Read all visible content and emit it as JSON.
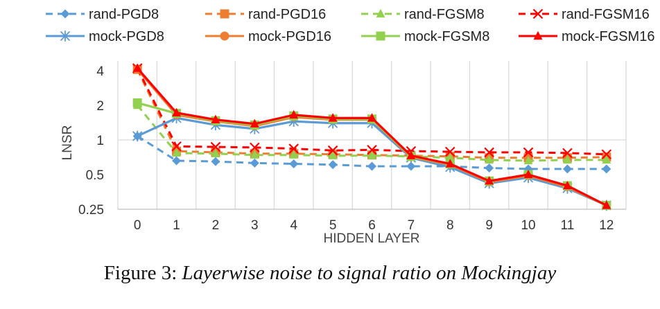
{
  "caption": {
    "prefix": "Figure 3:",
    "text": "Layerwise noise to signal ratio on Mockingjay"
  },
  "chart_data": {
    "type": "line",
    "xlabel": "HIDDEN LAYER",
    "ylabel": "LNSR",
    "y_scale": "log2",
    "ylim": [
      0.25,
      4
    ],
    "y_ticks": [
      0.25,
      0.5,
      1,
      2,
      4
    ],
    "y_tick_labels": [
      "0.25",
      "0.5",
      "1",
      "2",
      "4"
    ],
    "x": [
      0,
      1,
      2,
      3,
      4,
      5,
      6,
      7,
      8,
      9,
      10,
      11,
      12
    ],
    "grid": "vertical",
    "legend_position": "top",
    "series": [
      {
        "name": "rand-PGD8",
        "color": "#5b9bd5",
        "dash": "dashed",
        "marker": "diamond",
        "values": [
          1.08,
          0.66,
          0.65,
          0.63,
          0.62,
          0.61,
          0.59,
          0.59,
          0.59,
          0.57,
          0.56,
          0.56,
          0.56
        ]
      },
      {
        "name": "rand-PGD16",
        "color": "#ed7d31",
        "dash": "dashed",
        "marker": "square",
        "values": [
          4.1,
          0.8,
          0.78,
          0.76,
          0.76,
          0.75,
          0.74,
          0.73,
          0.72,
          0.7,
          0.7,
          0.7,
          0.71
        ]
      },
      {
        "name": "rand-FGSM8",
        "color": "#92d050",
        "dash": "dashed",
        "marker": "triangle",
        "values": [
          2.0,
          0.77,
          0.76,
          0.74,
          0.74,
          0.73,
          0.73,
          0.72,
          0.7,
          0.67,
          0.66,
          0.67,
          0.67
        ]
      },
      {
        "name": "rand-FGSM16",
        "color": "#ff0000",
        "dash": "dashed",
        "marker": "x",
        "values": [
          4.2,
          0.88,
          0.87,
          0.86,
          0.84,
          0.81,
          0.82,
          0.8,
          0.79,
          0.78,
          0.78,
          0.77,
          0.75
        ]
      },
      {
        "name": "mock-PGD8",
        "color": "#5b9bd5",
        "dash": "solid",
        "marker": "asterisk",
        "values": [
          1.08,
          1.55,
          1.35,
          1.25,
          1.45,
          1.4,
          1.4,
          0.7,
          0.58,
          0.42,
          0.47,
          0.38,
          0.27
        ]
      },
      {
        "name": "mock-PGD16",
        "color": "#ed7d31",
        "dash": "solid",
        "marker": "circle",
        "values": [
          4.1,
          1.65,
          1.45,
          1.32,
          1.58,
          1.5,
          1.5,
          0.71,
          0.61,
          0.43,
          0.49,
          0.39,
          0.27
        ]
      },
      {
        "name": "mock-FGSM8",
        "color": "#92d050",
        "dash": "solid",
        "marker": "square",
        "values": [
          2.1,
          1.7,
          1.47,
          1.35,
          1.62,
          1.52,
          1.52,
          0.72,
          0.62,
          0.44,
          0.5,
          0.4,
          0.27
        ]
      },
      {
        "name": "mock-FGSM16",
        "color": "#ff0000",
        "dash": "solid",
        "marker": "triangle",
        "values": [
          4.2,
          1.72,
          1.5,
          1.38,
          1.65,
          1.55,
          1.55,
          0.73,
          0.62,
          0.44,
          0.5,
          0.4,
          0.27
        ]
      }
    ]
  }
}
